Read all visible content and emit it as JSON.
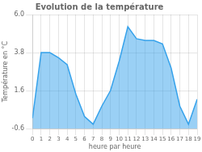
{
  "chart_data": {
    "type": "area",
    "title": "Evolution de la température",
    "xlabel": "heure par heure",
    "ylabel": "Température en °C",
    "x": [
      0,
      1,
      2,
      3,
      4,
      5,
      6,
      7,
      8,
      9,
      10,
      11,
      12,
      13,
      14,
      15,
      16,
      17,
      18,
      19
    ],
    "values": [
      0.0,
      3.8,
      3.8,
      3.5,
      3.1,
      1.4,
      0.1,
      -0.35,
      0.7,
      1.6,
      3.3,
      5.3,
      4.6,
      4.5,
      4.5,
      4.3,
      2.9,
      0.7,
      -0.35,
      1.1
    ],
    "xlim": [
      0,
      19
    ],
    "xticks": [
      0,
      1,
      2,
      3,
      4,
      5,
      6,
      7,
      8,
      9,
      10,
      11,
      12,
      13,
      14,
      15,
      16,
      17,
      18,
      19
    ],
    "ylim": [
      -0.6,
      6.0
    ],
    "yticks": [
      -0.6,
      1.6,
      3.8,
      {
        "value": 6.0,
        "label": "6.0"
      }
    ],
    "grid": true
  }
}
